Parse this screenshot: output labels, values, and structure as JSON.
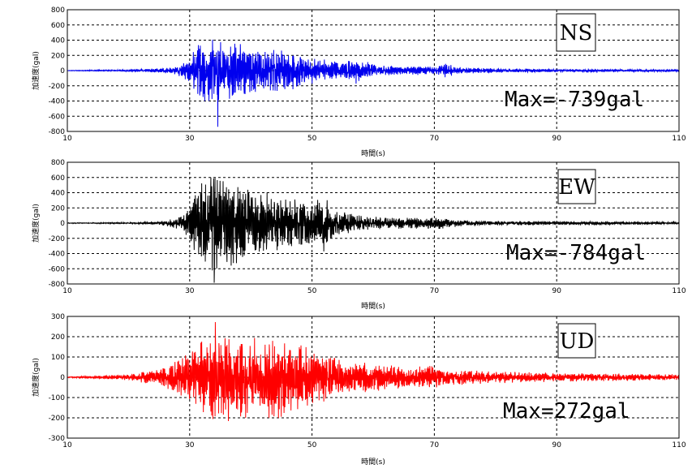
{
  "chart_data": [
    {
      "type": "line",
      "component": "NS",
      "annotation": "Max=-739gal",
      "xlabel": "時間(s)",
      "ylabel": "加速度(gal)",
      "xlim": [
        10,
        110
      ],
      "ylim": [
        -800,
        800
      ],
      "x_ticks": [
        10,
        30,
        50,
        70,
        90,
        110
      ],
      "y_ticks": [
        -800,
        -600,
        -400,
        -200,
        0,
        200,
        400,
        600,
        800
      ],
      "grid": true,
      "color": "#0000ee",
      "series": [
        {
          "peak": -739,
          "peak_time": 34.6,
          "seed": 11,
          "envelope": [
            [
              10,
              5
            ],
            [
              20,
              12
            ],
            [
              25,
              28
            ],
            [
              28,
              60
            ],
            [
              30,
              160
            ],
            [
              31,
              320
            ],
            [
              32,
              420
            ],
            [
              33,
              430
            ],
            [
              34,
              430
            ],
            [
              36,
              400
            ],
            [
              38,
              360
            ],
            [
              42,
              300
            ],
            [
              46,
              260
            ],
            [
              49,
              250
            ],
            [
              51,
              160
            ],
            [
              55,
              110
            ],
            [
              57,
              180
            ],
            [
              60,
              90
            ],
            [
              65,
              55
            ],
            [
              70,
              60
            ],
            [
              72,
              95
            ],
            [
              75,
              45
            ],
            [
              80,
              28
            ],
            [
              90,
              20
            ],
            [
              110,
              15
            ]
          ]
        }
      ]
    },
    {
      "type": "line",
      "component": "EW",
      "annotation": "Max=-784gal",
      "xlabel": "時間(s)",
      "ylabel": "加速度(gal)",
      "xlim": [
        10,
        110
      ],
      "ylim": [
        -800,
        800
      ],
      "x_ticks": [
        10,
        30,
        50,
        70,
        90,
        110
      ],
      "y_ticks": [
        -800,
        -600,
        -400,
        -200,
        0,
        200,
        400,
        600,
        800
      ],
      "grid": true,
      "color": "#000000",
      "series": [
        {
          "peak": -784,
          "peak_time": 34.0,
          "seed": 23,
          "envelope": [
            [
              10,
              5
            ],
            [
              20,
              10
            ],
            [
              25,
              20
            ],
            [
              28,
              80
            ],
            [
              30,
              200
            ],
            [
              31,
              420
            ],
            [
              32,
              600
            ],
            [
              33,
              680
            ],
            [
              35,
              660
            ],
            [
              37,
              580
            ],
            [
              40,
              480
            ],
            [
              45,
              350
            ],
            [
              50,
              300
            ],
            [
              52,
              400
            ],
            [
              54,
              160
            ],
            [
              58,
              110
            ],
            [
              62,
              80
            ],
            [
              68,
              70
            ],
            [
              70,
              90
            ],
            [
              75,
              40
            ],
            [
              80,
              30
            ],
            [
              90,
              25
            ],
            [
              110,
              20
            ]
          ]
        }
      ]
    },
    {
      "type": "line",
      "component": "UD",
      "annotation": "Max=272gal",
      "xlabel": "時間(s)",
      "ylabel": "加速度(gal)",
      "xlim": [
        10,
        110
      ],
      "ylim": [
        -300,
        300
      ],
      "x_ticks": [
        10,
        30,
        50,
        70,
        90,
        110
      ],
      "y_ticks": [
        -300,
        -200,
        -100,
        0,
        100,
        200,
        300
      ],
      "grid": true,
      "color": "#ff0000",
      "series": [
        {
          "peak": 272,
          "peak_time": 34.2,
          "seed": 37,
          "envelope": [
            [
              10,
              3
            ],
            [
              15,
              8
            ],
            [
              20,
              15
            ],
            [
              25,
              40
            ],
            [
              28,
              90
            ],
            [
              30,
              140
            ],
            [
              32,
              190
            ],
            [
              34,
              230
            ],
            [
              36,
              220
            ],
            [
              40,
              210
            ],
            [
              44,
              220
            ],
            [
              46,
              200
            ],
            [
              50,
              150
            ],
            [
              55,
              90
            ],
            [
              60,
              70
            ],
            [
              65,
              55
            ],
            [
              70,
              60
            ],
            [
              72,
              40
            ],
            [
              80,
              30
            ],
            [
              90,
              22
            ],
            [
              110,
              15
            ]
          ]
        }
      ]
    }
  ]
}
